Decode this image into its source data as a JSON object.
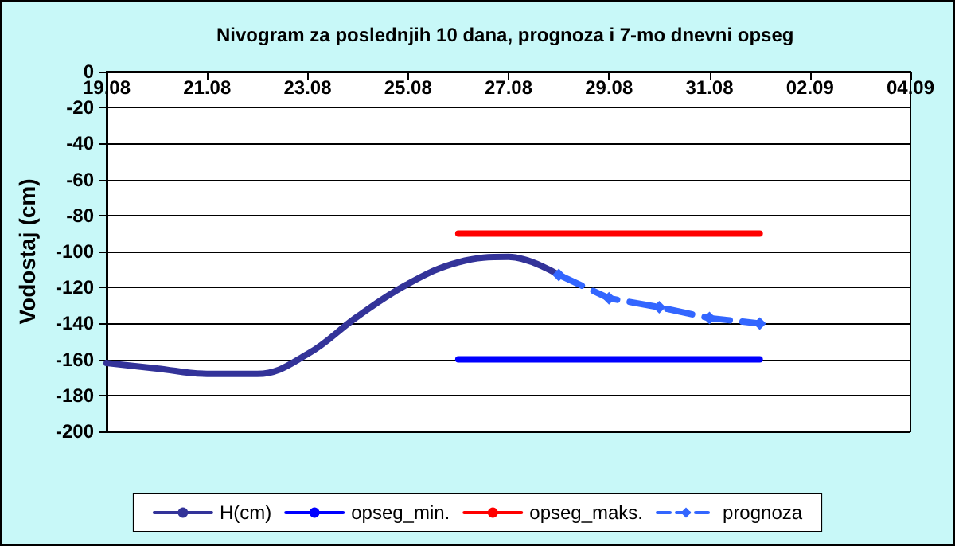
{
  "chart_data": {
    "type": "line",
    "title": "Nivogram za poslednjih 10 dana, prognoza i 7-mo dnevni opseg",
    "ylabel": "Vodostaj (cm)",
    "x": [
      "--08-19",
      "--08-20",
      "--08-21",
      "--08-22",
      "--08-23",
      "--08-24",
      "--08-25",
      "--08-26",
      "--08-27",
      "--08-28"
    ],
    "series": [
      {
        "name": "H(cm)",
        "color": "#333399",
        "values": [
          -162,
          -165,
          -168,
          -168,
          -157,
          -136,
          -118,
          -106,
          -103,
          -113
        ],
        "marker": "none",
        "line_style": "solid"
      },
      {
        "name": "opseg_min.",
        "color": "#0000ff",
        "x": [
          "--08-26",
          "--09-01"
        ],
        "values": [
          -160,
          -160
        ],
        "marker": "none",
        "line_style": "solid"
      },
      {
        "name": "opseg_maks.",
        "color": "#ff0000",
        "x": [
          "--08-26",
          "--09-01"
        ],
        "values": [
          -90,
          -90
        ],
        "marker": "none",
        "line_style": "solid"
      },
      {
        "name": "prognoza",
        "color": "#3366ff",
        "x": [
          "--08-28",
          "--08-29",
          "--08-30",
          "--08-31",
          "--09-01"
        ],
        "values": [
          -113,
          -126,
          -131,
          -137,
          -140
        ],
        "marker": "diamond",
        "line_style": "dashed"
      }
    ],
    "xlim": [
      "--08-19",
      "--09-04"
    ],
    "xticks": [
      {
        "value": "--08-19",
        "label": "19.08"
      },
      {
        "value": "--08-21",
        "label": "21.08"
      },
      {
        "value": "--08-23",
        "label": "23.08"
      },
      {
        "value": "--08-25",
        "label": "25.08"
      },
      {
        "value": "--08-27",
        "label": "27.08"
      },
      {
        "value": "--08-29",
        "label": "29.08"
      },
      {
        "value": "--08-31",
        "label": "31.08"
      },
      {
        "value": "--09-02",
        "label": "02.09"
      },
      {
        "value": "--09-04",
        "label": "04.09"
      }
    ],
    "ylim": [
      -200,
      0
    ],
    "yticks": [
      -200,
      -180,
      -160,
      -140,
      -120,
      -100,
      -80,
      -60,
      -40,
      -20,
      0
    ],
    "grid": "y",
    "legend": "bottom"
  }
}
